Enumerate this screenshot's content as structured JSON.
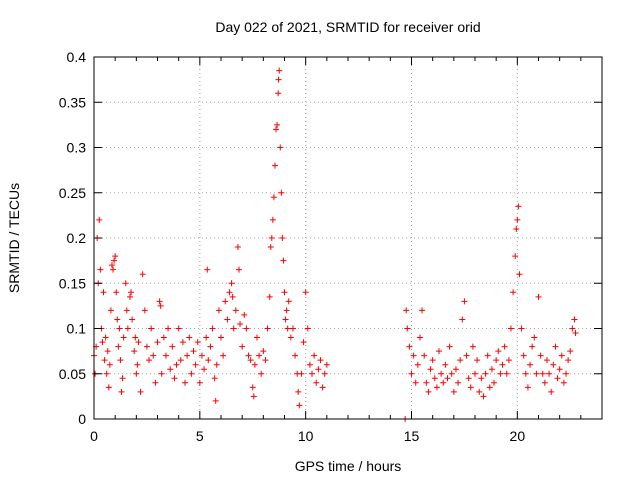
{
  "chart_data": {
    "type": "scatter",
    "title": "Day 022 of 2021, SRMTID for receiver orid",
    "xlabel": "GPS time / hours",
    "ylabel": "SRMTID / TECUs",
    "xlim": [
      0,
      24
    ],
    "ylim": [
      0,
      0.4
    ],
    "xticks": [
      "0",
      "5",
      "10",
      "15",
      "20"
    ],
    "yticks": [
      "0",
      "0.05",
      "0.1",
      "0.15",
      "0.2",
      "0.25",
      "0.3",
      "0.35",
      "0.4"
    ],
    "grid": true,
    "marker": "plus",
    "color": "#ff0000",
    "series": [
      {
        "values": [
          [
            0.0,
            0.07
          ],
          [
            0.05,
            0.05
          ],
          [
            0.1,
            0.08
          ],
          [
            0.15,
            0.2
          ],
          [
            0.2,
            0.15
          ],
          [
            0.25,
            0.22
          ],
          [
            0.3,
            0.165
          ],
          [
            0.35,
            0.1
          ],
          [
            0.4,
            0.085
          ],
          [
            0.45,
            0.14
          ],
          [
            0.5,
            0.065
          ],
          [
            0.55,
            0.09
          ],
          [
            0.6,
            0.05
          ],
          [
            0.65,
            0.075
          ],
          [
            0.7,
            0.035
          ],
          [
            0.75,
            0.06
          ],
          [
            0.8,
            0.12
          ],
          [
            0.85,
            0.17
          ],
          [
            0.9,
            0.165
          ],
          [
            0.95,
            0.175
          ],
          [
            1.0,
            0.18
          ],
          [
            1.05,
            0.14
          ],
          [
            1.1,
            0.11
          ],
          [
            1.15,
            0.08
          ],
          [
            1.2,
            0.1
          ],
          [
            1.25,
            0.065
          ],
          [
            1.3,
            0.03
          ],
          [
            1.35,
            0.045
          ],
          [
            1.4,
            0.09
          ],
          [
            1.5,
            0.15
          ],
          [
            1.55,
            0.12
          ],
          [
            1.6,
            0.1
          ],
          [
            1.7,
            0.135
          ],
          [
            1.75,
            0.14
          ],
          [
            1.8,
            0.11
          ],
          [
            1.9,
            0.075
          ],
          [
            1.95,
            0.09
          ],
          [
            2.0,
            0.05
          ],
          [
            2.05,
            0.06
          ],
          [
            2.1,
            0.085
          ],
          [
            2.2,
            0.03
          ],
          [
            2.3,
            0.16
          ],
          [
            2.4,
            0.12
          ],
          [
            2.5,
            0.08
          ],
          [
            2.6,
            0.065
          ],
          [
            2.7,
            0.1
          ],
          [
            2.8,
            0.07
          ],
          [
            2.9,
            0.04
          ],
          [
            3.0,
            0.085
          ],
          [
            3.1,
            0.13
          ],
          [
            3.15,
            0.125
          ],
          [
            3.2,
            0.05
          ],
          [
            3.3,
            0.09
          ],
          [
            3.4,
            0.07
          ],
          [
            3.5,
            0.1
          ],
          [
            3.6,
            0.055
          ],
          [
            3.7,
            0.08
          ],
          [
            3.8,
            0.045
          ],
          [
            3.9,
            0.06
          ],
          [
            4.0,
            0.1
          ],
          [
            4.1,
            0.065
          ],
          [
            4.2,
            0.085
          ],
          [
            4.3,
            0.04
          ],
          [
            4.4,
            0.07
          ],
          [
            4.5,
            0.09
          ],
          [
            4.6,
            0.05
          ],
          [
            4.7,
            0.075
          ],
          [
            4.8,
            0.06
          ],
          [
            4.9,
            0.085
          ],
          [
            5.0,
            0.04
          ],
          [
            5.1,
            0.07
          ],
          [
            5.2,
            0.055
          ],
          [
            5.3,
            0.09
          ],
          [
            5.35,
            0.165
          ],
          [
            5.4,
            0.065
          ],
          [
            5.5,
            0.08
          ],
          [
            5.6,
            0.1
          ],
          [
            5.7,
            0.045
          ],
          [
            5.75,
            0.02
          ],
          [
            5.8,
            0.06
          ],
          [
            5.9,
            0.12
          ],
          [
            6.0,
            0.09
          ],
          [
            6.1,
            0.07
          ],
          [
            6.2,
            0.13
          ],
          [
            6.3,
            0.11
          ],
          [
            6.4,
            0.14
          ],
          [
            6.5,
            0.15
          ],
          [
            6.55,
            0.135
          ],
          [
            6.6,
            0.1
          ],
          [
            6.7,
            0.12
          ],
          [
            6.8,
            0.19
          ],
          [
            6.85,
            0.165
          ],
          [
            6.9,
            0.105
          ],
          [
            7.0,
            0.08
          ],
          [
            7.1,
            0.115
          ],
          [
            7.2,
            0.1
          ],
          [
            7.3,
            0.07
          ],
          [
            7.4,
            0.065
          ],
          [
            7.5,
            0.035
          ],
          [
            7.55,
            0.025
          ],
          [
            7.6,
            0.06
          ],
          [
            7.7,
            0.09
          ],
          [
            7.8,
            0.07
          ],
          [
            7.9,
            0.05
          ],
          [
            8.0,
            0.075
          ],
          [
            8.1,
            0.065
          ],
          [
            8.2,
            0.1
          ],
          [
            8.3,
            0.135
          ],
          [
            8.35,
            0.19
          ],
          [
            8.4,
            0.2
          ],
          [
            8.45,
            0.22
          ],
          [
            8.5,
            0.245
          ],
          [
            8.55,
            0.28
          ],
          [
            8.6,
            0.32
          ],
          [
            8.65,
            0.325
          ],
          [
            8.7,
            0.36
          ],
          [
            8.72,
            0.375
          ],
          [
            8.75,
            0.385
          ],
          [
            8.8,
            0.3
          ],
          [
            8.85,
            0.25
          ],
          [
            8.9,
            0.2
          ],
          [
            8.95,
            0.175
          ],
          [
            9.0,
            0.14
          ],
          [
            9.05,
            0.11
          ],
          [
            9.1,
            0.12
          ],
          [
            9.15,
            0.1
          ],
          [
            9.2,
            0.13
          ],
          [
            9.3,
            0.09
          ],
          [
            9.4,
            0.1
          ],
          [
            9.5,
            0.07
          ],
          [
            9.6,
            0.05
          ],
          [
            9.65,
            0.03
          ],
          [
            9.7,
            0.015
          ],
          [
            9.8,
            0.05
          ],
          [
            9.9,
            0.085
          ],
          [
            10.0,
            0.14
          ],
          [
            10.1,
            0.1
          ],
          [
            10.2,
            0.06
          ],
          [
            10.3,
            0.05
          ],
          [
            10.4,
            0.07
          ],
          [
            10.5,
            0.04
          ],
          [
            10.6,
            0.055
          ],
          [
            10.7,
            0.065
          ],
          [
            10.8,
            0.035
          ],
          [
            10.9,
            0.05
          ],
          [
            11.0,
            0.06
          ],
          [
            14.7,
            0.0
          ],
          [
            14.75,
            0.12
          ],
          [
            14.8,
            0.1
          ],
          [
            14.9,
            0.08
          ],
          [
            15.0,
            0.05
          ],
          [
            15.1,
            0.07
          ],
          [
            15.2,
            0.04
          ],
          [
            15.3,
            0.06
          ],
          [
            15.4,
            0.09
          ],
          [
            15.5,
            0.12
          ],
          [
            15.6,
            0.07
          ],
          [
            15.7,
            0.04
          ],
          [
            15.8,
            0.03
          ],
          [
            15.9,
            0.055
          ],
          [
            16.0,
            0.065
          ],
          [
            16.1,
            0.045
          ],
          [
            16.2,
            0.035
          ],
          [
            16.3,
            0.075
          ],
          [
            16.4,
            0.05
          ],
          [
            16.5,
            0.04
          ],
          [
            16.6,
            0.06
          ],
          [
            16.7,
            0.045
          ],
          [
            16.8,
            0.08
          ],
          [
            16.9,
            0.05
          ],
          [
            17.0,
            0.03
          ],
          [
            17.1,
            0.055
          ],
          [
            17.2,
            0.04
          ],
          [
            17.3,
            0.065
          ],
          [
            17.4,
            0.11
          ],
          [
            17.5,
            0.13
          ],
          [
            17.6,
            0.07
          ],
          [
            17.7,
            0.045
          ],
          [
            17.8,
            0.035
          ],
          [
            17.9,
            0.08
          ],
          [
            18.0,
            0.05
          ],
          [
            18.1,
            0.065
          ],
          [
            18.2,
            0.03
          ],
          [
            18.3,
            0.045
          ],
          [
            18.4,
            0.025
          ],
          [
            18.5,
            0.05
          ],
          [
            18.6,
            0.07
          ],
          [
            18.7,
            0.035
          ],
          [
            18.8,
            0.055
          ],
          [
            18.9,
            0.04
          ],
          [
            19.0,
            0.065
          ],
          [
            19.1,
            0.075
          ],
          [
            19.2,
            0.05
          ],
          [
            19.3,
            0.06
          ],
          [
            19.4,
            0.08
          ],
          [
            19.5,
            0.05
          ],
          [
            19.6,
            0.065
          ],
          [
            19.7,
            0.1
          ],
          [
            19.8,
            0.14
          ],
          [
            19.9,
            0.18
          ],
          [
            19.95,
            0.21
          ],
          [
            20.0,
            0.22
          ],
          [
            20.05,
            0.235
          ],
          [
            20.1,
            0.16
          ],
          [
            20.2,
            0.1
          ],
          [
            20.3,
            0.07
          ],
          [
            20.4,
            0.05
          ],
          [
            20.5,
            0.035
          ],
          [
            20.6,
            0.06
          ],
          [
            20.7,
            0.08
          ],
          [
            20.8,
            0.09
          ],
          [
            20.9,
            0.05
          ],
          [
            21.0,
            0.135
          ],
          [
            21.1,
            0.07
          ],
          [
            21.2,
            0.05
          ],
          [
            21.3,
            0.04
          ],
          [
            21.4,
            0.065
          ],
          [
            21.5,
            0.05
          ],
          [
            21.6,
            0.03
          ],
          [
            21.7,
            0.06
          ],
          [
            21.8,
            0.08
          ],
          [
            21.9,
            0.045
          ],
          [
            22.0,
            0.055
          ],
          [
            22.1,
            0.07
          ],
          [
            22.2,
            0.04
          ],
          [
            22.3,
            0.05
          ],
          [
            22.4,
            0.065
          ],
          [
            22.5,
            0.075
          ],
          [
            22.6,
            0.1
          ],
          [
            22.7,
            0.11
          ],
          [
            22.75,
            0.095
          ]
        ]
      }
    ]
  }
}
